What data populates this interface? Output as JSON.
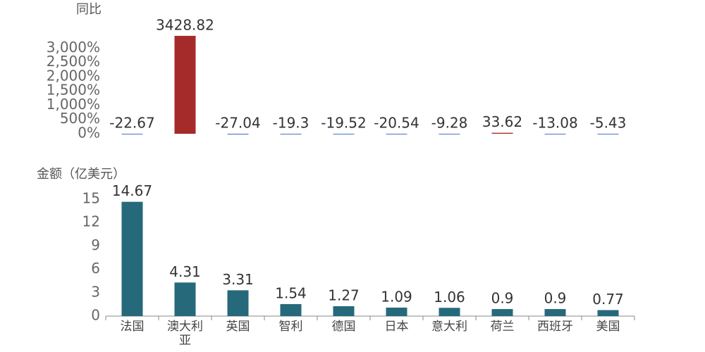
{
  "chart_data": [
    {
      "type": "bar",
      "title": "同比",
      "values": [
        -22.67,
        3428.82,
        -27.04,
        -19.3,
        -19.52,
        -20.54,
        -9.28,
        33.62,
        -13.08,
        -5.43
      ],
      "positive_color": "#a52a2a",
      "negative_color": "#4a72c4",
      "ylim": [
        0,
        3500
      ],
      "yticks": [
        {
          "value": 0,
          "label": "0%"
        },
        {
          "value": 500,
          "label": "500%"
        },
        {
          "value": 1000,
          "label": "1,000%"
        },
        {
          "value": 1500,
          "label": "1,500%"
        },
        {
          "value": 2000,
          "label": "2,000%"
        },
        {
          "value": 2500,
          "label": "2,500%"
        },
        {
          "value": 3000,
          "label": "3,000%"
        }
      ]
    },
    {
      "type": "bar",
      "title": "金额（亿美元）",
      "categories": [
        "法国",
        "澳大利亚",
        "英国",
        "智利",
        "德国",
        "日本",
        "意大利",
        "荷兰",
        "西班牙",
        "美国"
      ],
      "values": [
        14.67,
        4.31,
        3.31,
        1.54,
        1.27,
        1.09,
        1.06,
        0.9,
        0.9,
        0.77
      ],
      "color": "#26697a",
      "ylim": [
        0,
        15
      ],
      "yticks": [
        0,
        3,
        6,
        9,
        12,
        15
      ]
    }
  ]
}
